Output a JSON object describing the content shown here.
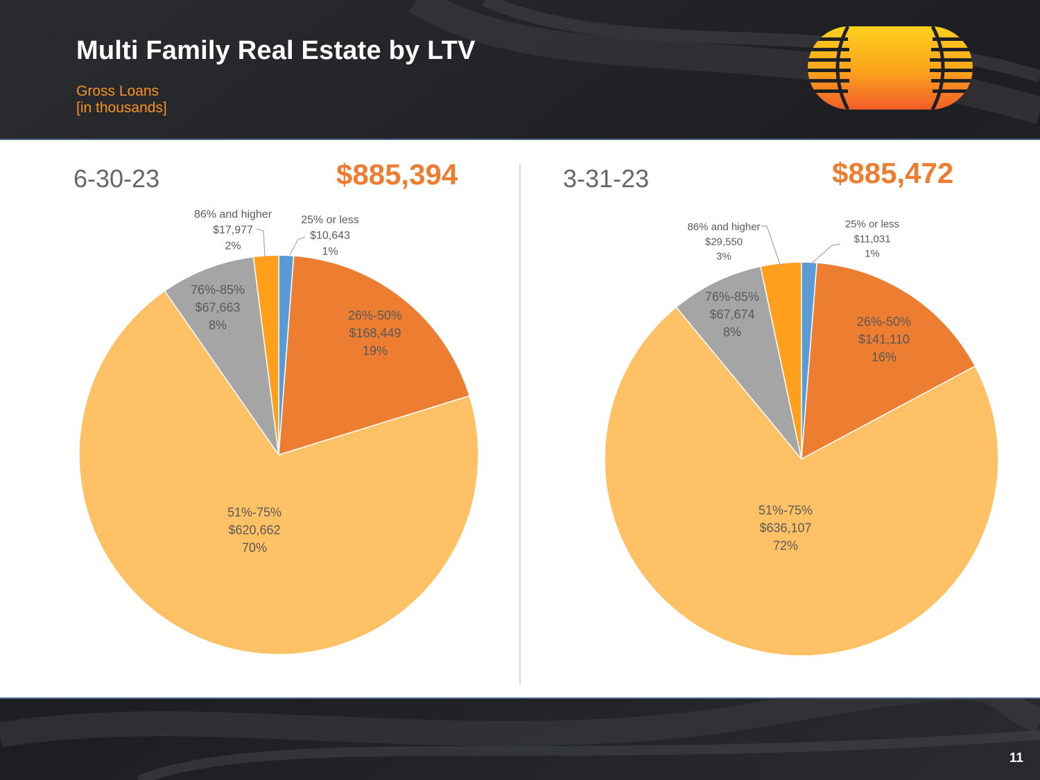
{
  "header": {
    "title": "Multi Family Real Estate by LTV",
    "subtitle_line1": "Gross Loans",
    "subtitle_line2": "[in thousands]"
  },
  "page_number": "11",
  "colors": {
    "blue": "#5b9bd5",
    "dark_orange": "#ed7d31",
    "light_orange": "#ffc165",
    "gray": "#a5a5a5",
    "orange": "#ff9f1c",
    "accent_text": "#ed7d31",
    "date_text": "#666666"
  },
  "chart_data": [
    {
      "type": "pie",
      "title": "6-30-23",
      "total_label": "$885,394",
      "total": 885394,
      "slices": [
        {
          "category": "25% or less",
          "value": 10643,
          "value_label": "$10,643",
          "pct_label": "1%",
          "color": "#5b9bd5"
        },
        {
          "category": "26%-50%",
          "value": 168449,
          "value_label": "$168,449",
          "pct_label": "19%",
          "color": "#ed7d31"
        },
        {
          "category": "51%-75%",
          "value": 620662,
          "value_label": "$620,662",
          "pct_label": "70%",
          "color": "#ffc165"
        },
        {
          "category": "76%-85%",
          "value": 67663,
          "value_label": "$67,663",
          "pct_label": "8%",
          "color": "#a5a5a5"
        },
        {
          "category": "86% and higher",
          "value": 17977,
          "value_label": "$17,977",
          "pct_label": "2%",
          "color": "#ff9f1c"
        }
      ]
    },
    {
      "type": "pie",
      "title": "3-31-23",
      "total_label": "$885,472",
      "total": 885472,
      "slices": [
        {
          "category": "25% or less",
          "value": 11031,
          "value_label": "$11,031",
          "pct_label": "1%",
          "color": "#5b9bd5"
        },
        {
          "category": "26%-50%",
          "value": 141110,
          "value_label": "$141,110",
          "pct_label": "16%",
          "color": "#ed7d31"
        },
        {
          "category": "51%-75%",
          "value": 636107,
          "value_label": "$636,107",
          "pct_label": "72%",
          "color": "#ffc165"
        },
        {
          "category": "76%-85%",
          "value": 67674,
          "value_label": "$67,674",
          "pct_label": "8%",
          "color": "#a5a5a5"
        },
        {
          "category": "86% and higher",
          "value": 29550,
          "value_label": "$29,550",
          "pct_label": "3%",
          "color": "#ff9f1c"
        }
      ]
    }
  ]
}
